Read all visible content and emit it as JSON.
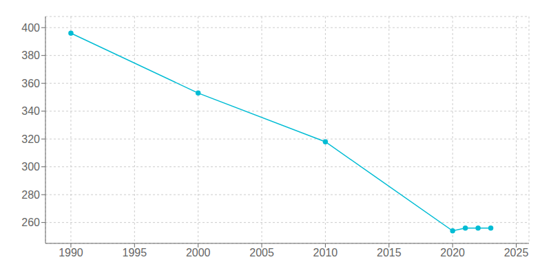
{
  "chart_data": {
    "type": "line",
    "x": [
      1990,
      2000,
      2010,
      2020,
      2021,
      2022,
      2023
    ],
    "values": [
      396,
      353,
      318,
      254,
      256,
      256,
      256
    ],
    "color": "#00bcd4",
    "marker": "circle",
    "xlim": [
      1988,
      2026
    ],
    "ylim": [
      245,
      408
    ],
    "xticks": [
      1990,
      1995,
      2000,
      2005,
      2010,
      2015,
      2020,
      2025
    ],
    "yticks": [
      260,
      280,
      300,
      320,
      340,
      360,
      380,
      400
    ],
    "grid": true
  }
}
